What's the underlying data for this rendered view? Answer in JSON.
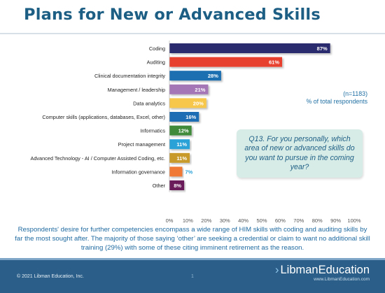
{
  "slide": {
    "title": "Plans for New or Advanced Skills",
    "sample_note": "(n=1183)",
    "measure_note": "% of total respondents",
    "question": "Q13. For you personally, which area of new or advanced skills do you want to pursue in the coming year?",
    "summary": "Respondents' desire for further competencies encompass a wide range of HIM skills with coding and auditing skills by far the most sought after. The majority of those saying ‘other’ are seeking a credential or claim to want no additional skill training (29%) with some of these citing imminent retirement as the reason."
  },
  "chart_data": {
    "type": "bar",
    "orientation": "horizontal",
    "categories": [
      "Coding",
      "Auditing",
      "Clinical documentation integrity",
      "Management / leadership",
      "Data analytics",
      "Computer skills (applications, databases, Excel, other)",
      "Informatics",
      "Project management",
      "Advanced Technology - AI / Computer Assisted Coding, etc.",
      "Information governance",
      "Other"
    ],
    "values": [
      87,
      61,
      28,
      21,
      20,
      16,
      12,
      11,
      11,
      7,
      8
    ],
    "value_labels": [
      "87%",
      "61%",
      "28%",
      "21%",
      "20%",
      "16%",
      "12%",
      "11%",
      "11%",
      "7%",
      "8%"
    ],
    "label_inside": [
      true,
      true,
      true,
      true,
      true,
      true,
      true,
      true,
      true,
      false,
      true
    ],
    "colors": [
      "#2b2a6e",
      "#e8412f",
      "#1f6fb2",
      "#a576b6",
      "#f7c74b",
      "#1b6db3",
      "#3f8a3a",
      "#2aa2d8",
      "#c79a2a",
      "#f07a35",
      "#6a1a5a"
    ],
    "xlim": [
      0,
      100
    ],
    "xticks": [
      0,
      10,
      20,
      30,
      40,
      50,
      60,
      70,
      80,
      90,
      100
    ],
    "xtick_labels": [
      "0%",
      "10%",
      "20%",
      "30%",
      "40%",
      "50%",
      "60%",
      "70%",
      "80%",
      "90%",
      "100%"
    ],
    "grid": false
  },
  "footer": {
    "copyright": "© 2021 Libman Education, Inc.",
    "page_number": "1",
    "brand_chevron": "›",
    "brand_bold": "Libman",
    "brand_light": "Education",
    "brand_url": "www.LibmanEducation.com"
  }
}
